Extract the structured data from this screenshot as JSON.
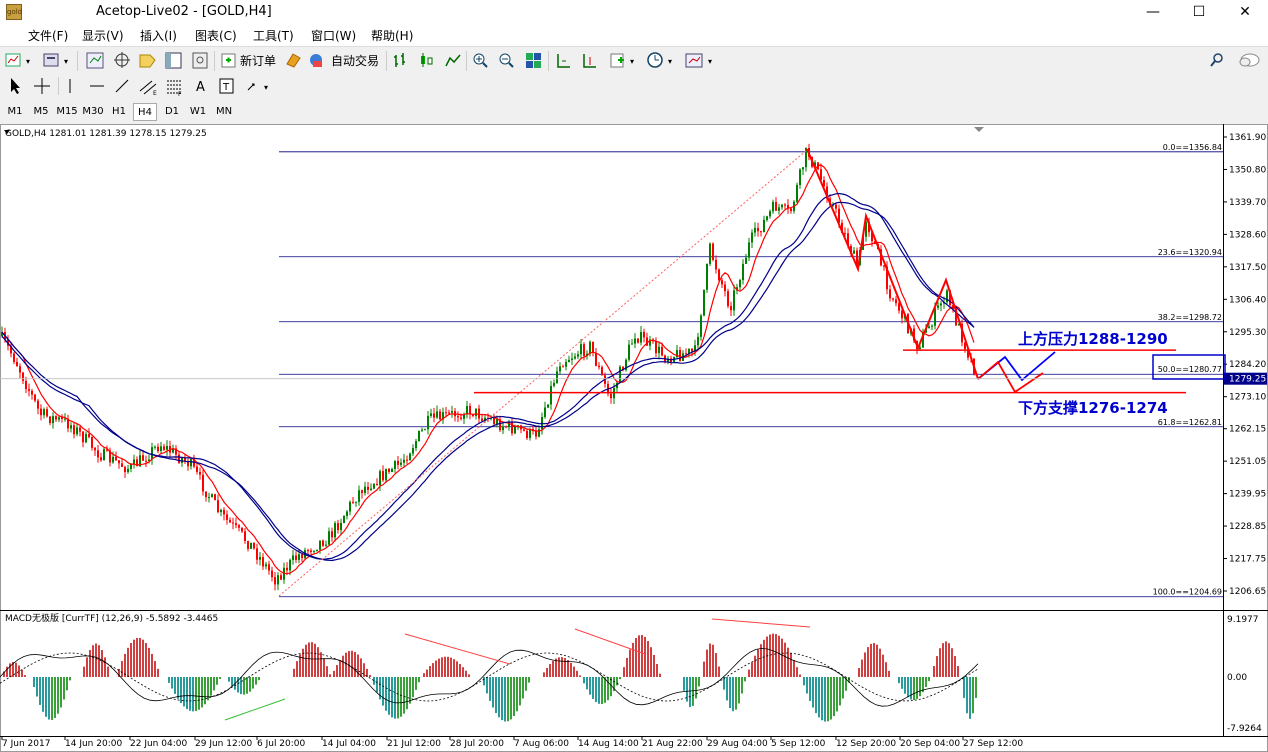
{
  "window": {
    "title": "Acetop-Live02 - [GOLD,H4]",
    "icon_name": "app-logo",
    "minimize": "—",
    "maximize": "☐",
    "close": "✕"
  },
  "menu": [
    "文件(F)",
    "显示(V)",
    "插入(I)",
    "图表(C)",
    "工具(T)",
    "窗口(W)",
    "帮助(H)"
  ],
  "toolbar": {
    "new_order": "新订单",
    "auto_trade": "自动交易"
  },
  "drawing_tools": {
    "text_tool": "A"
  },
  "timeframes": [
    "M1",
    "M5",
    "M15",
    "M30",
    "H1",
    "H4",
    "D1",
    "W1",
    "MN"
  ],
  "active_timeframe": "H4",
  "chart": {
    "header": "GOLD,H4  1281.01 1281.39 1278.15 1279.25",
    "symbol": "GOLD",
    "current_price": "1279.25",
    "price_axis": [
      "1361.90",
      "1350.80",
      "1339.70",
      "1328.60",
      "1317.50",
      "1306.40",
      "1295.30",
      "1284.20",
      "1273.10",
      "1262.15",
      "1251.05",
      "1239.95",
      "1228.85",
      "1217.75",
      "1206.65"
    ],
    "fib_levels": [
      {
        "label": "0.0==1356.84",
        "price": 1356.84
      },
      {
        "label": "23.6==1320.94",
        "price": 1320.94
      },
      {
        "label": "38.2==1298.72",
        "price": 1298.72
      },
      {
        "label": "50.0==1280.77",
        "price": 1280.77
      },
      {
        "label": "61.8==1262.81",
        "price": 1262.81
      },
      {
        "label": "100.0==1204.69",
        "price": 1204.69
      }
    ],
    "resistance_label": "上方压力1288-1290",
    "support_label": "下方支撑1276-1274",
    "resistance_price": 1289,
    "support_price": 1274.5,
    "colors": {
      "candle_up": "#008000",
      "candle_down": "#ff0000",
      "ma_red": "#ff0000",
      "ma_navy": "#00008b",
      "fib": "#000080",
      "annotation": "#0000cd"
    },
    "time_axis": [
      "7 Jun 2017",
      "14 Jun 20:00",
      "22 Jun 04:00",
      "29 Jun 12:00",
      "6 Jul 20:00",
      "14 Jul 04:00",
      "21 Jul 12:00",
      "28 Jul 20:00",
      "7 Aug 06:00",
      "14 Aug 14:00",
      "21 Aug 22:00",
      "29 Aug 04:00",
      "5 Sep 12:00",
      "12 Sep 20:00",
      "20 Sep 04:00",
      "27 Sep 12:00"
    ]
  },
  "macd": {
    "header": "MACD无极版 [CurrTF] (12,26,9) -5.5892 -3.4465",
    "axis": [
      "9.1977",
      "0.00",
      "-7.9264"
    ]
  }
}
